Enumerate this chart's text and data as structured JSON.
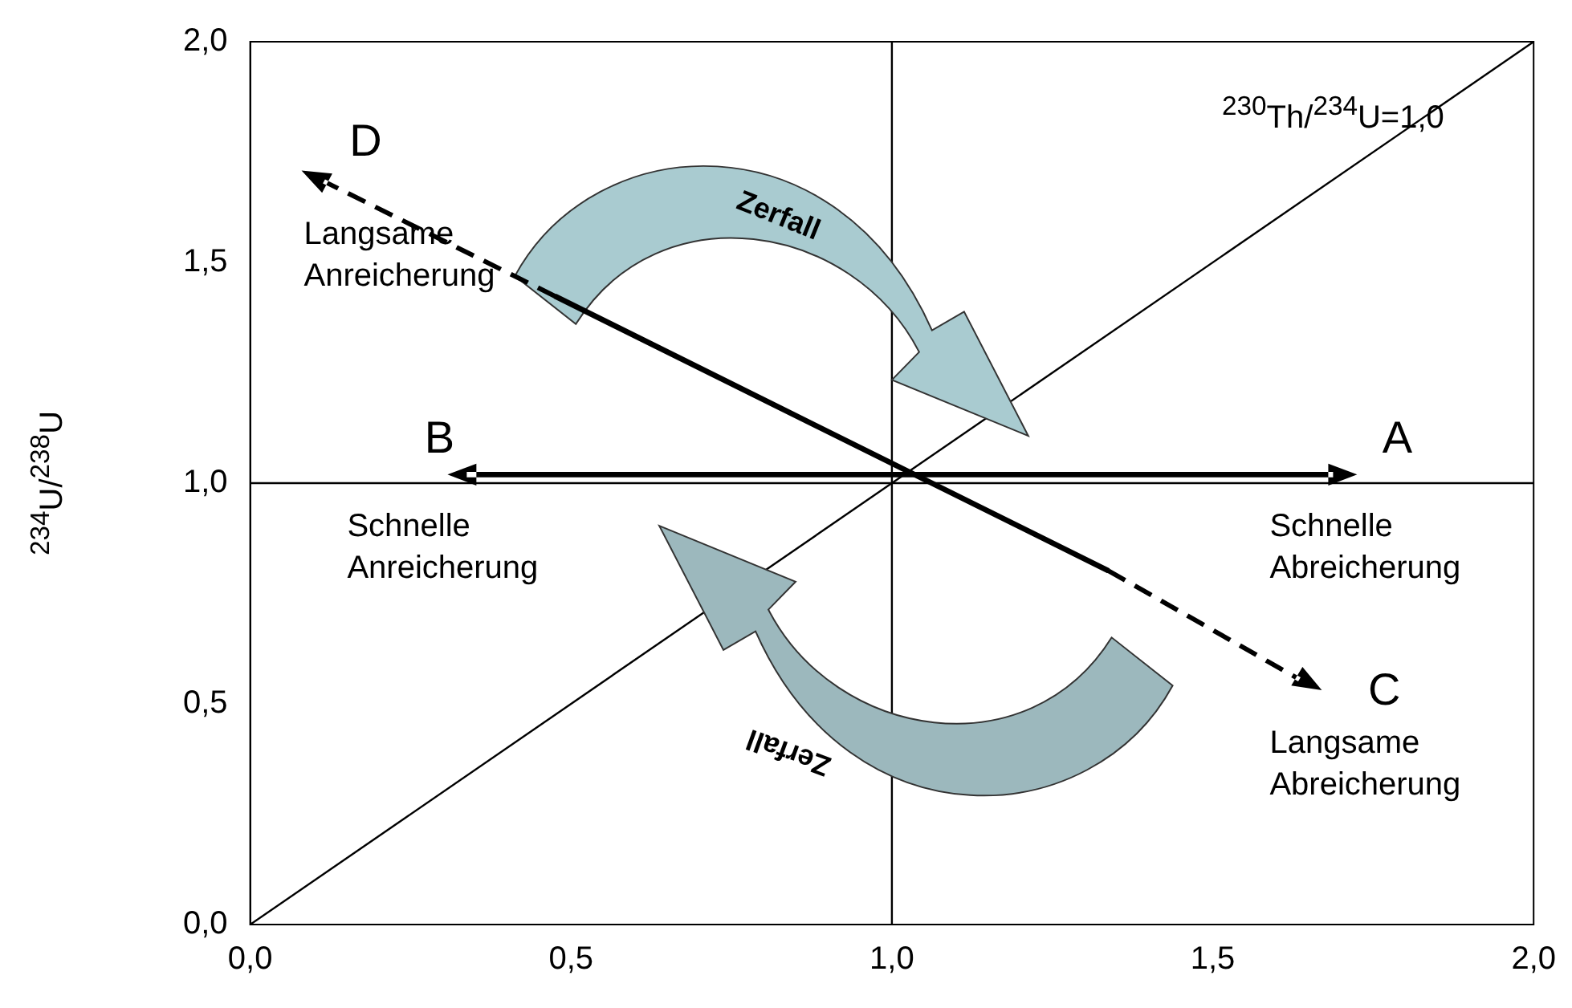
{
  "chart_data": {
    "type": "line",
    "ylabel": "$^{234}$U/$^{238}$U",
    "xlim": [
      0,
      2
    ],
    "ylim": [
      0,
      2
    ],
    "xticks": [
      {
        "value": 0,
        "label": "0,0"
      },
      {
        "value": 0.5,
        "label": "0,5"
      },
      {
        "value": 1,
        "label": "1,0"
      },
      {
        "value": 1.5,
        "label": "1,5"
      },
      {
        "value": 2,
        "label": "2,0"
      }
    ],
    "yticks": [
      {
        "value": 0,
        "label": "0,0"
      },
      {
        "value": 0.5,
        "label": "0,5"
      },
      {
        "value": 1,
        "label": "1,0"
      },
      {
        "value": 1.5,
        "label": "1,5"
      },
      {
        "value": 2,
        "label": "2,0"
      }
    ],
    "marker": "none",
    "series": [
      {
        "color": "#000000",
        "x": [
          0,
          2
        ],
        "values": [
          0,
          2
        ]
      },
      {
        "color": "#000000",
        "x": [
          1,
          1
        ],
        "values": [
          0,
          2
        ]
      },
      {
        "color": "#000000",
        "x": [
          0,
          2
        ],
        "values": [
          1,
          1
        ]
      }
    ],
    "annotations": [
      "D",
      "A",
      "B",
      "C",
      "Langsame\nAnreicherung",
      "Schnelle\nAnreicherung",
      "Schnelle\nAbreicherung",
      "Langsame\nAbreicherung",
      "Zerfall",
      "Zerfall",
      "$^{230}$Th/$^{234}$U=1,0"
    ]
  }
}
